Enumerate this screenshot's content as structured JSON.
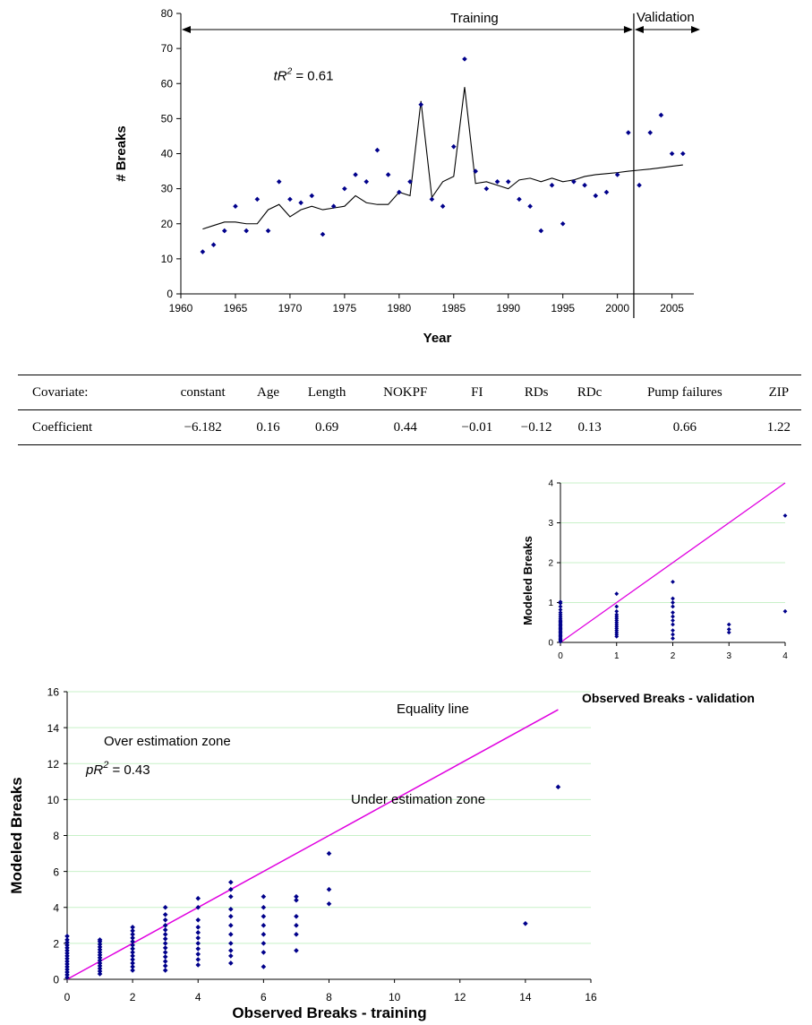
{
  "colors": {
    "marker": "#00008B",
    "fit_line": "#000000",
    "equality_line": "#E000E0",
    "grid": "#C8F0C8"
  },
  "chart_data": [
    {
      "type": "line",
      "xlabel": "Year",
      "ylabel": "# Breaks",
      "xlim": [
        1960,
        2007
      ],
      "ylim": [
        0,
        80
      ],
      "xticks": [
        "1960",
        "1965",
        "1970",
        "1975",
        "1980",
        "1985",
        "1990",
        "1995",
        "2000",
        "2005"
      ],
      "yticks": [
        "0",
        "10",
        "20",
        "30",
        "40",
        "50",
        "60",
        "70",
        "80"
      ],
      "annotations": {
        "training": "Training",
        "validation": "Validation",
        "r2_var": "tR",
        "r2_sup": "2",
        "r2_val": " = 0.61",
        "split_year": 2001.5
      },
      "series": [
        {
          "kind": "scatter",
          "x": [
            1962,
            1963,
            1964,
            1965,
            1966,
            1967,
            1968,
            1969,
            1970,
            1971,
            1972,
            1973,
            1974,
            1975,
            1976,
            1977,
            1978,
            1979,
            1980,
            1981,
            1982,
            1983,
            1984,
            1985,
            1986,
            1987,
            1988,
            1989,
            1990,
            1991,
            1992,
            1993,
            1994,
            1995,
            1996,
            1997,
            1998,
            1999,
            2000,
            2001,
            2002,
            2003,
            2004,
            2005,
            2006
          ],
          "y": [
            12,
            14,
            18,
            25,
            18,
            27,
            18,
            32,
            27,
            26,
            28,
            17,
            25,
            30,
            34,
            32,
            41,
            34,
            29,
            32,
            54,
            27,
            25,
            42,
            67,
            35,
            30,
            32,
            32,
            27,
            25,
            18,
            31,
            20,
            32,
            31,
            28,
            29,
            34,
            46,
            31,
            46,
            51,
            40,
            40
          ]
        },
        {
          "kind": "line",
          "x": [
            1962,
            1963,
            1964,
            1965,
            1966,
            1967,
            1968,
            1969,
            1970,
            1971,
            1972,
            1973,
            1974,
            1975,
            1976,
            1977,
            1978,
            1979,
            1980,
            1981,
            1982,
            1983,
            1984,
            1985,
            1986,
            1987,
            1988,
            1989,
            1990,
            1991,
            1992,
            1993,
            1994,
            1995,
            1996,
            1997,
            1998,
            1999,
            2000,
            2001,
            2002,
            2003,
            2004,
            2005,
            2006
          ],
          "y": [
            18.5,
            19.5,
            20.5,
            20.5,
            20,
            20,
            24,
            25.5,
            22,
            24,
            25,
            24,
            24.5,
            25,
            28,
            26,
            25.5,
            25.5,
            29,
            28,
            55,
            27.5,
            32,
            33.5,
            59,
            31.5,
            32,
            31,
            30,
            32.5,
            33,
            32,
            33,
            32,
            32.5,
            33.5,
            34,
            34.3,
            34.6,
            35,
            35.3,
            35.6,
            36,
            36.4,
            36.8
          ]
        }
      ]
    },
    {
      "type": "table",
      "header": [
        "Covariate:",
        "constant",
        "Age",
        "Length",
        "NOKPF",
        "FI",
        "RDs",
        "RDc",
        "Pump failures",
        "ZIP"
      ],
      "rows": [
        [
          "Coefficient",
          "−6.182",
          "0.16",
          "0.69",
          "0.44",
          "−0.01",
          "−0.12",
          "0.13",
          "0.66",
          "1.22"
        ]
      ]
    },
    {
      "type": "scatter",
      "xlabel": "Observed Breaks - validation",
      "ylabel": "Modeled  Breaks",
      "xlim": [
        0,
        4
      ],
      "ylim": [
        0,
        4
      ],
      "xticks": [
        "0",
        "1",
        "2",
        "3",
        "4"
      ],
      "yticks": [
        "0",
        "1",
        "2",
        "3",
        "4"
      ],
      "equality_line": [
        [
          0,
          0
        ],
        [
          4,
          4
        ]
      ],
      "points": [
        [
          0,
          0.02
        ],
        [
          0,
          0.05
        ],
        [
          0,
          0.08
        ],
        [
          0,
          0.11
        ],
        [
          0,
          0.14
        ],
        [
          0,
          0.17
        ],
        [
          0,
          0.2
        ],
        [
          0,
          0.23
        ],
        [
          0,
          0.26
        ],
        [
          0,
          0.29
        ],
        [
          0,
          0.32
        ],
        [
          0,
          0.35
        ],
        [
          0,
          0.38
        ],
        [
          0,
          0.41
        ],
        [
          0,
          0.44
        ],
        [
          0,
          0.47
        ],
        [
          0,
          0.5
        ],
        [
          0,
          0.53
        ],
        [
          0,
          0.56
        ],
        [
          0,
          0.6
        ],
        [
          0,
          0.65
        ],
        [
          0,
          0.7
        ],
        [
          0,
          0.75
        ],
        [
          0,
          0.82
        ],
        [
          0,
          0.9
        ],
        [
          0,
          0.98
        ],
        [
          0,
          1.02
        ],
        [
          1,
          0.15
        ],
        [
          1,
          0.2
        ],
        [
          1,
          0.25
        ],
        [
          1,
          0.3
        ],
        [
          1,
          0.35
        ],
        [
          1,
          0.4
        ],
        [
          1,
          0.45
        ],
        [
          1,
          0.5
        ],
        [
          1,
          0.55
        ],
        [
          1,
          0.6
        ],
        [
          1,
          0.65
        ],
        [
          1,
          0.7
        ],
        [
          1,
          0.78
        ],
        [
          1,
          0.9
        ],
        [
          1,
          1.22
        ],
        [
          2,
          0.1
        ],
        [
          2,
          0.2
        ],
        [
          2,
          0.3
        ],
        [
          2,
          0.45
        ],
        [
          2,
          0.55
        ],
        [
          2,
          0.65
        ],
        [
          2,
          0.75
        ],
        [
          2,
          0.9
        ],
        [
          2,
          1.0
        ],
        [
          2,
          1.1
        ],
        [
          2,
          1.52
        ],
        [
          3,
          0.25
        ],
        [
          3,
          0.33
        ],
        [
          3,
          0.45
        ],
        [
          4,
          0.78
        ],
        [
          4,
          3.18
        ]
      ]
    },
    {
      "type": "scatter",
      "xlabel": "Observed Breaks - training",
      "ylabel": "Modeled  Breaks",
      "xlim": [
        0,
        16
      ],
      "ylim": [
        0,
        16
      ],
      "xticks": [
        "0",
        "2",
        "4",
        "6",
        "8",
        "10",
        "12",
        "14",
        "16"
      ],
      "yticks": [
        "0",
        "2",
        "4",
        "6",
        "8",
        "10",
        "12",
        "14",
        "16"
      ],
      "equality_line": [
        [
          0,
          0
        ],
        [
          15,
          15
        ]
      ],
      "annotations": {
        "r2_var": "pR",
        "r2_sup": "2",
        "r2_val": " = 0.43",
        "equality": "Equality line",
        "over": "Over estimation zone",
        "under": "Under estimation zone"
      },
      "points": [
        [
          0,
          0.1
        ],
        [
          0,
          0.25
        ],
        [
          0,
          0.4
        ],
        [
          0,
          0.55
        ],
        [
          0,
          0.7
        ],
        [
          0,
          0.85
        ],
        [
          0,
          1.0
        ],
        [
          0,
          1.15
        ],
        [
          0,
          1.3
        ],
        [
          0,
          1.45
        ],
        [
          0,
          1.6
        ],
        [
          0,
          1.75
        ],
        [
          0,
          1.9
        ],
        [
          0,
          2.05
        ],
        [
          0,
          2.2
        ],
        [
          0,
          2.4
        ],
        [
          1,
          0.3
        ],
        [
          1,
          0.45
        ],
        [
          1,
          0.6
        ],
        [
          1,
          0.75
        ],
        [
          1,
          0.9
        ],
        [
          1,
          1.05
        ],
        [
          1,
          1.2
        ],
        [
          1,
          1.35
        ],
        [
          1,
          1.5
        ],
        [
          1,
          1.65
        ],
        [
          1,
          1.8
        ],
        [
          1,
          1.95
        ],
        [
          1,
          2.1
        ],
        [
          1,
          2.2
        ],
        [
          2,
          0.5
        ],
        [
          2,
          0.7
        ],
        [
          2,
          0.9
        ],
        [
          2,
          1.1
        ],
        [
          2,
          1.3
        ],
        [
          2,
          1.5
        ],
        [
          2,
          1.7
        ],
        [
          2,
          1.9
        ],
        [
          2,
          2.1
        ],
        [
          2,
          2.3
        ],
        [
          2,
          2.5
        ],
        [
          2,
          2.7
        ],
        [
          2,
          2.9
        ],
        [
          3,
          0.5
        ],
        [
          3,
          0.75
        ],
        [
          3,
          1.0
        ],
        [
          3,
          1.25
        ],
        [
          3,
          1.5
        ],
        [
          3,
          1.75
        ],
        [
          3,
          2.0
        ],
        [
          3,
          2.25
        ],
        [
          3,
          2.5
        ],
        [
          3,
          2.75
        ],
        [
          3,
          3.0
        ],
        [
          3,
          3.3
        ],
        [
          3,
          3.6
        ],
        [
          3,
          4.0
        ],
        [
          4,
          0.8
        ],
        [
          4,
          1.1
        ],
        [
          4,
          1.4
        ],
        [
          4,
          1.7
        ],
        [
          4,
          2.0
        ],
        [
          4,
          2.3
        ],
        [
          4,
          2.6
        ],
        [
          4,
          2.9
        ],
        [
          4,
          3.3
        ],
        [
          4,
          4.0
        ],
        [
          4,
          4.5
        ],
        [
          5,
          0.9
        ],
        [
          5,
          1.3
        ],
        [
          5,
          1.6
        ],
        [
          5,
          2.0
        ],
        [
          5,
          2.5
        ],
        [
          5,
          3.0
        ],
        [
          5,
          3.5
        ],
        [
          5,
          3.9
        ],
        [
          5,
          4.6
        ],
        [
          5,
          5.0
        ],
        [
          5,
          5.4
        ],
        [
          6,
          0.7
        ],
        [
          6,
          1.5
        ],
        [
          6,
          2.0
        ],
        [
          6,
          2.5
        ],
        [
          6,
          3.0
        ],
        [
          6,
          3.5
        ],
        [
          6,
          4.0
        ],
        [
          6,
          4.6
        ],
        [
          7,
          1.6
        ],
        [
          7,
          2.5
        ],
        [
          7,
          3.0
        ],
        [
          7,
          3.5
        ],
        [
          7,
          4.4
        ],
        [
          7,
          4.6
        ],
        [
          8,
          4.2
        ],
        [
          8,
          5.0
        ],
        [
          8,
          7.0
        ],
        [
          14,
          3.1
        ],
        [
          15,
          10.7
        ]
      ]
    }
  ]
}
